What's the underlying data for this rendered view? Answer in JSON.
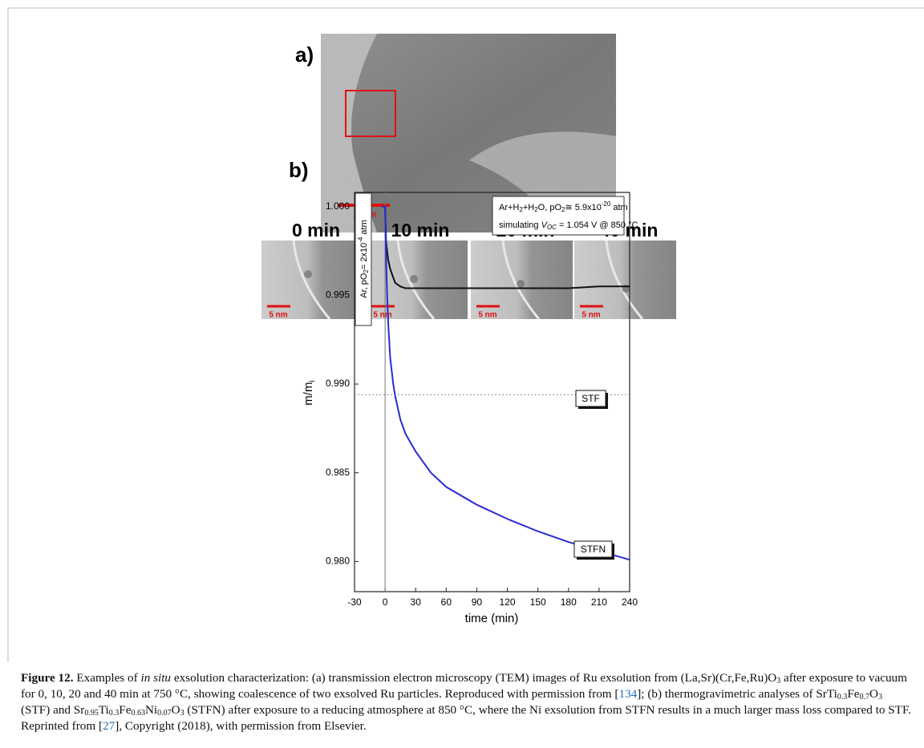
{
  "figure": {
    "panel_a": {
      "label": "a)",
      "scale_bar": "20 nm",
      "frames": [
        {
          "time": "0 min",
          "scale_bar": "5 nm"
        },
        {
          "time": "10 min",
          "scale_bar": "5 nm"
        },
        {
          "time": "20 min",
          "scale_bar": "5 nm"
        },
        {
          "time": "40 min",
          "scale_bar": "5 nm"
        }
      ]
    }
  },
  "chart_data": {
    "type": "line",
    "label": "b)",
    "x_label": "time (min)",
    "y_label": [
      "m/m",
      "i"
    ],
    "x": [
      -3,
      0,
      1,
      2,
      3,
      5,
      8,
      10,
      15,
      20,
      30,
      45,
      60,
      90,
      120,
      150,
      180,
      210,
      240
    ],
    "series": [
      {
        "name": "STF",
        "color": "#111111",
        "values": [
          1.0,
          1.0,
          0.998,
          0.9975,
          0.997,
          0.9965,
          0.996,
          0.9957,
          0.9955,
          0.9954,
          0.9954,
          0.9954,
          0.9954,
          0.9954,
          0.9954,
          0.9954,
          0.9954,
          0.9955,
          0.9955
        ]
      },
      {
        "name": "STFN",
        "color": "#2b2bd0",
        "values": [
          1.0,
          1.0,
          0.997,
          0.995,
          0.9935,
          0.9915,
          0.99,
          0.9893,
          0.988,
          0.9872,
          0.9862,
          0.985,
          0.9842,
          0.9832,
          0.9824,
          0.9817,
          0.9811,
          0.9806,
          0.9801
        ]
      }
    ],
    "xlim": [
      -30,
      240
    ],
    "xticks": [
      -30,
      0,
      30,
      60,
      90,
      120,
      150,
      180,
      210,
      240
    ],
    "ylim": [
      0.9783,
      1.0008
    ],
    "yticks": [
      {
        "value": 0.98,
        "label": "0.980"
      },
      0.985,
      {
        "value": 0.99,
        "label": "0.990"
      },
      0.995,
      {
        "value": 1,
        "label": "1.000"
      }
    ],
    "hline": 0.9894,
    "vline": 0,
    "annotations": [
      [
        "Ar, pO",
        "2",
        "= 2x10",
        "-4",
        " atm"
      ],
      [
        "Ar+H",
        "2",
        "+H",
        "2",
        "O, pO",
        "2",
        "≅ 5.9x10",
        "-20",
        " atm"
      ],
      [
        "simulating ",
        "V",
        "OC",
        " = 1.054 V @ 850 °C"
      ]
    ]
  },
  "caption": {
    "runs": [
      "Figure 12.",
      " Examples of ",
      "in situ",
      " exsolution characterization: (a) transmission electron microscopy (TEM) images of Ru exsolution from (La,Sr)(Cr,Fe,Ru)O",
      "3",
      " after exposure to vacuum for 0, 10, 20 and 40 min at 750 °C, showing coalescence of two exsolved Ru particles. Reproduced with permission from [",
      "134",
      "]; (b) thermogravimetric analyses of SrTi",
      "0.3",
      "Fe",
      "0.7",
      "O",
      "3",
      " (STF) and Sr",
      "0.95",
      "Ti",
      "0.3",
      "Fe",
      "0.63",
      "Ni",
      "0.07",
      "O",
      "3",
      " (STFN) after exposure to a reducing atmosphere at 850 °C, where the Ni exsolution from STFN results in a much larger mass loss compared to STF. Reprinted from [",
      "27",
      "], Copyright (2018), with permission from Elsevier."
    ]
  }
}
